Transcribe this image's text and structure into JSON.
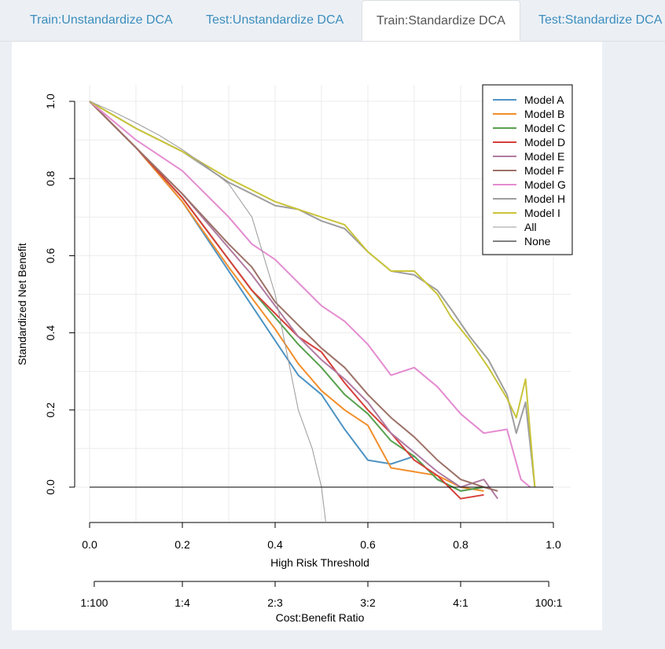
{
  "tabs": [
    {
      "label": "Train:Unstandardize DCA",
      "active": false
    },
    {
      "label": "Test:Unstandardize DCA",
      "active": false
    },
    {
      "label": "Train:Standardize DCA",
      "active": true
    },
    {
      "label": "Test:Standardize DCA",
      "active": false
    }
  ],
  "chart_data": {
    "type": "line",
    "xlabel": "High Risk Threshold",
    "ylabel": "Standardized Net Benefit",
    "x_ticks": [
      "0.0",
      "0.2",
      "0.4",
      "0.6",
      "0.8",
      "1.0"
    ],
    "y_ticks": [
      "0.0",
      "0.2",
      "0.4",
      "0.6",
      "0.8",
      "1.0"
    ],
    "xlim": [
      0,
      1
    ],
    "ylim": [
      -0.1,
      1.0
    ],
    "grid": true,
    "legend_position": "top-right",
    "cost_benefit_axis": {
      "label": "Cost:Benefit Ratio",
      "ticks": [
        "1:100",
        "1:4",
        "2:3",
        "3:2",
        "4:1",
        "100:1"
      ],
      "positions": [
        0.01,
        0.2,
        0.4,
        0.6,
        0.8,
        0.99
      ]
    },
    "series": [
      {
        "name": "Model A",
        "color": "#4e93c3",
        "x": [
          0,
          0.1,
          0.2,
          0.3,
          0.35,
          0.4,
          0.45,
          0.5,
          0.55,
          0.6,
          0.65,
          0.7,
          0.75,
          0.8,
          0.85
        ],
        "y": [
          1.0,
          0.88,
          0.74,
          0.56,
          0.47,
          0.38,
          0.29,
          0.24,
          0.15,
          0.07,
          0.06,
          0.08,
          0.02,
          -0.01,
          0.0
        ]
      },
      {
        "name": "Model B",
        "color": "#f28e2b",
        "x": [
          0,
          0.1,
          0.2,
          0.3,
          0.35,
          0.4,
          0.45,
          0.5,
          0.55,
          0.6,
          0.65,
          0.7,
          0.75,
          0.8,
          0.85
        ],
        "y": [
          1.0,
          0.88,
          0.74,
          0.57,
          0.49,
          0.41,
          0.32,
          0.25,
          0.2,
          0.16,
          0.05,
          0.04,
          0.03,
          0.0,
          -0.01
        ]
      },
      {
        "name": "Model C",
        "color": "#59a14f",
        "x": [
          0,
          0.1,
          0.2,
          0.3,
          0.35,
          0.4,
          0.45,
          0.5,
          0.55,
          0.6,
          0.65,
          0.7,
          0.75,
          0.8,
          0.85
        ],
        "y": [
          1.0,
          0.88,
          0.75,
          0.59,
          0.51,
          0.44,
          0.37,
          0.31,
          0.24,
          0.19,
          0.12,
          0.08,
          0.02,
          -0.01,
          0.0
        ]
      },
      {
        "name": "Model D",
        "color": "#d63f3a",
        "x": [
          0,
          0.1,
          0.2,
          0.3,
          0.35,
          0.4,
          0.45,
          0.5,
          0.55,
          0.6,
          0.65,
          0.7,
          0.75,
          0.8,
          0.85
        ],
        "y": [
          1.0,
          0.88,
          0.75,
          0.59,
          0.51,
          0.45,
          0.39,
          0.35,
          0.27,
          0.2,
          0.14,
          0.07,
          0.03,
          -0.03,
          -0.02
        ]
      },
      {
        "name": "Model E",
        "color": "#b07aa1",
        "x": [
          0,
          0.1,
          0.2,
          0.3,
          0.35,
          0.4,
          0.45,
          0.5,
          0.55,
          0.6,
          0.65,
          0.7,
          0.75,
          0.8,
          0.85,
          0.88
        ],
        "y": [
          1.0,
          0.88,
          0.76,
          0.62,
          0.55,
          0.47,
          0.39,
          0.33,
          0.28,
          0.22,
          0.14,
          0.09,
          0.04,
          0.0,
          0.02,
          -0.03
        ]
      },
      {
        "name": "Model F",
        "color": "#9c7268",
        "x": [
          0,
          0.1,
          0.2,
          0.3,
          0.35,
          0.4,
          0.45,
          0.5,
          0.55,
          0.6,
          0.65,
          0.7,
          0.75,
          0.8,
          0.85,
          0.88
        ],
        "y": [
          1.0,
          0.88,
          0.76,
          0.63,
          0.57,
          0.48,
          0.42,
          0.36,
          0.31,
          0.24,
          0.18,
          0.13,
          0.07,
          0.02,
          0.0,
          -0.01
        ]
      },
      {
        "name": "Model G",
        "color": "#e48bd0",
        "x": [
          0,
          0.1,
          0.2,
          0.3,
          0.35,
          0.4,
          0.45,
          0.5,
          0.55,
          0.6,
          0.65,
          0.7,
          0.75,
          0.8,
          0.85,
          0.9,
          0.93,
          0.95
        ],
        "y": [
          1.0,
          0.9,
          0.82,
          0.7,
          0.63,
          0.59,
          0.53,
          0.47,
          0.43,
          0.37,
          0.29,
          0.31,
          0.26,
          0.19,
          0.14,
          0.15,
          0.02,
          0.0
        ]
      },
      {
        "name": "Model H",
        "color": "#9e9e9e",
        "x": [
          0,
          0.1,
          0.2,
          0.3,
          0.35,
          0.4,
          0.45,
          0.5,
          0.55,
          0.6,
          0.65,
          0.7,
          0.75,
          0.78,
          0.82,
          0.86,
          0.9,
          0.92,
          0.94,
          0.96
        ],
        "y": [
          1.0,
          0.93,
          0.87,
          0.79,
          0.76,
          0.73,
          0.72,
          0.69,
          0.67,
          0.61,
          0.56,
          0.55,
          0.51,
          0.46,
          0.39,
          0.33,
          0.24,
          0.14,
          0.22,
          0.0
        ]
      },
      {
        "name": "Model I",
        "color": "#c9c43a",
        "x": [
          0,
          0.1,
          0.2,
          0.3,
          0.35,
          0.4,
          0.45,
          0.5,
          0.55,
          0.6,
          0.65,
          0.7,
          0.75,
          0.78,
          0.82,
          0.86,
          0.9,
          0.92,
          0.94,
          0.96
        ],
        "y": [
          1.0,
          0.93,
          0.87,
          0.8,
          0.77,
          0.74,
          0.72,
          0.7,
          0.68,
          0.61,
          0.56,
          0.56,
          0.5,
          0.44,
          0.38,
          0.31,
          0.23,
          0.18,
          0.28,
          0.0
        ]
      },
      {
        "name": "All",
        "color": "#999999",
        "line_width": 1,
        "x": [
          0,
          0.05,
          0.1,
          0.15,
          0.2,
          0.25,
          0.3,
          0.35,
          0.4,
          0.45,
          0.48,
          0.5,
          0.51
        ],
        "y": [
          1.0,
          0.974,
          0.944,
          0.912,
          0.875,
          0.833,
          0.786,
          0.7,
          0.5,
          0.2,
          0.1,
          0.0,
          -0.1
        ]
      },
      {
        "name": "None",
        "color": "#000000",
        "line_width": 1,
        "x": [
          0,
          1.0
        ],
        "y": [
          0,
          0
        ]
      }
    ]
  }
}
